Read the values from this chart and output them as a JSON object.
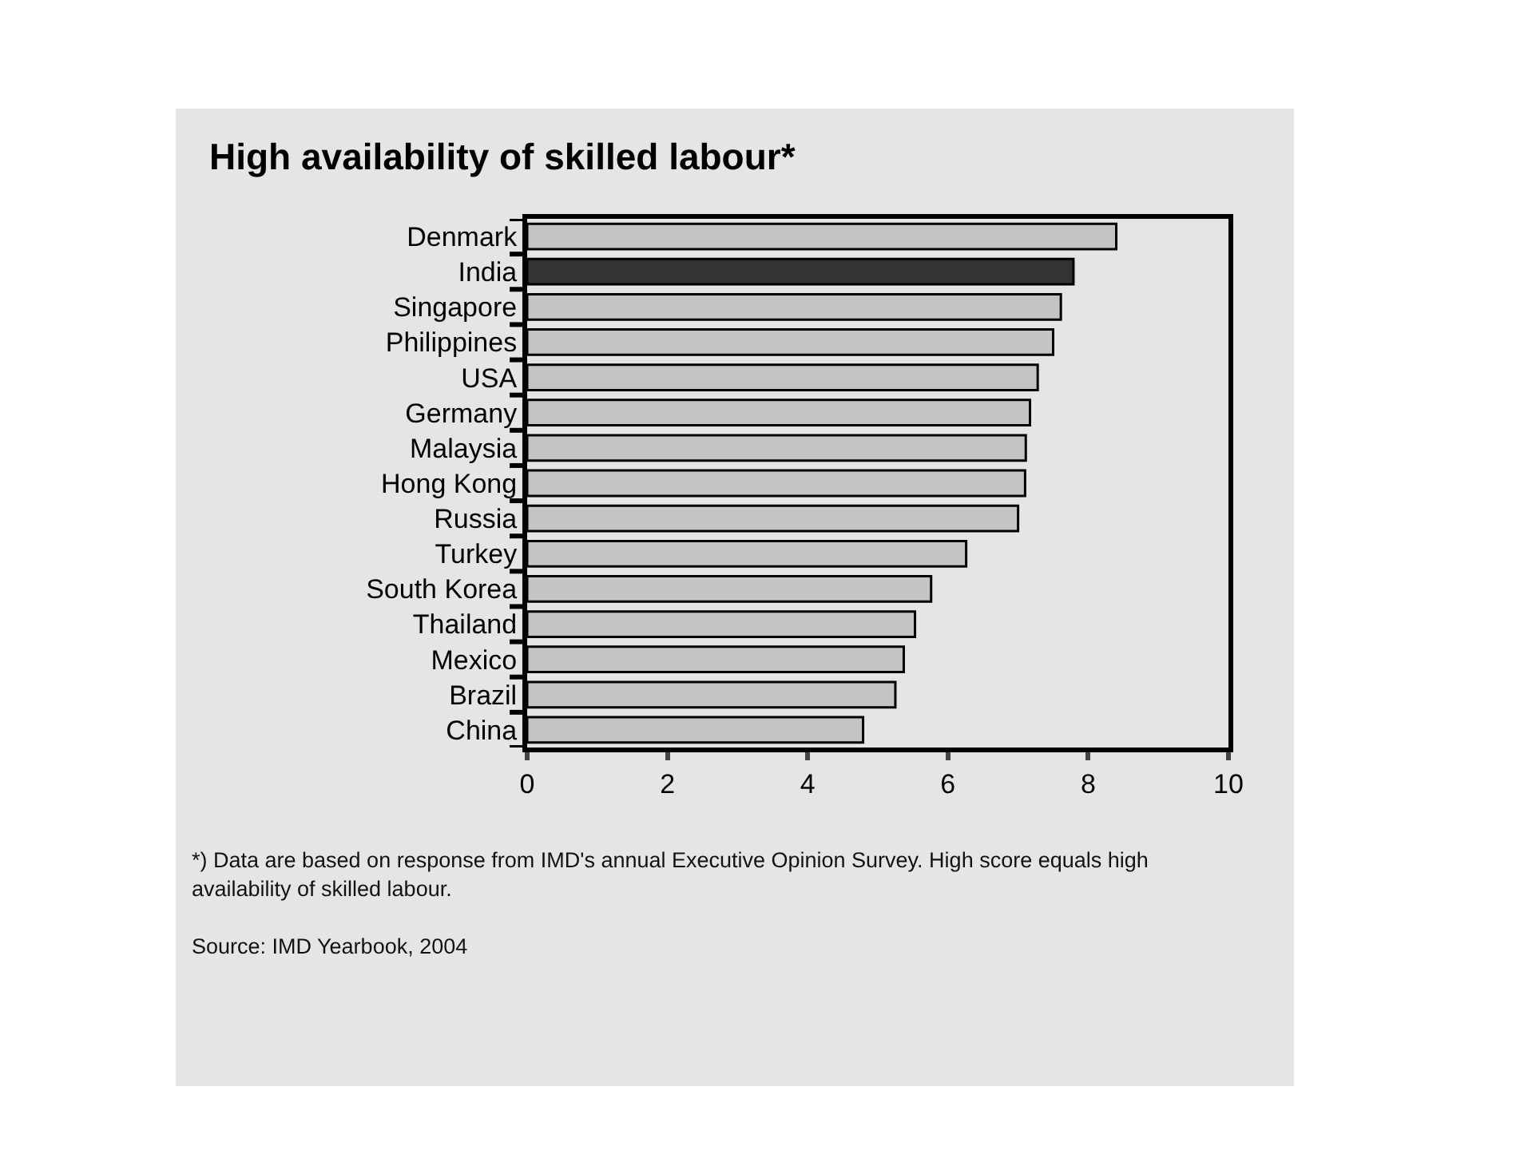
{
  "chart_data": {
    "type": "bar",
    "orientation": "horizontal",
    "title": "High availability of skilled labour*",
    "categories": [
      "Denmark",
      "India",
      "Singapore",
      "Philippines",
      "USA",
      "Germany",
      "Malaysia",
      "Hong Kong",
      "Russia",
      "Turkey",
      "South Korea",
      "Thailand",
      "Mexico",
      "Brazil",
      "China"
    ],
    "values": [
      8.4,
      7.79,
      7.61,
      7.5,
      7.28,
      7.17,
      7.11,
      7.1,
      7.0,
      6.26,
      5.76,
      5.53,
      5.37,
      5.25,
      4.79
    ],
    "colors": [
      "#c4c4c4",
      "#333333",
      "#c4c4c4",
      "#c4c4c4",
      "#c4c4c4",
      "#c4c4c4",
      "#c4c4c4",
      "#c4c4c4",
      "#c4c4c4",
      "#c4c4c4",
      "#c4c4c4",
      "#c4c4c4",
      "#c4c4c4",
      "#c4c4c4",
      "#c4c4c4"
    ],
    "xlim": [
      0,
      10
    ],
    "xticks": [
      0,
      2,
      4,
      6,
      8,
      10
    ],
    "annotations": [
      "*) Data are based on response from IMD's annual Executive Opinion Survey. High score equals high availability of skilled labour.",
      "Source: IMD Yearbook, 2004"
    ]
  }
}
